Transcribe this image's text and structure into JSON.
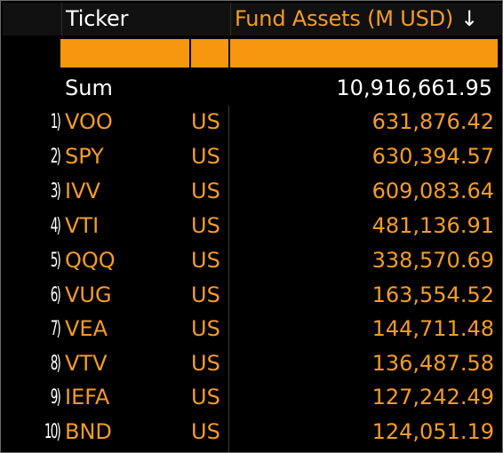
{
  "header": {
    "ticker_label": "Ticker",
    "fund_assets_label": "Fund Assets (M USD)",
    "sort_indicator": "↓",
    "sort_icon": "arrow-down-icon"
  },
  "sum": {
    "label": "Sum",
    "value": "10,916,661.95"
  },
  "rows": [
    {
      "num": "1)",
      "ticker": "VOO",
      "country": "US",
      "assets": "631,876.42"
    },
    {
      "num": "2)",
      "ticker": "SPY",
      "country": "US",
      "assets": "630,394.57"
    },
    {
      "num": "3)",
      "ticker": "IVV",
      "country": "US",
      "assets": "609,083.64"
    },
    {
      "num": "4)",
      "ticker": "VTI",
      "country": "US",
      "assets": "481,136.91"
    },
    {
      "num": "5)",
      "ticker": "QQQ",
      "country": "US",
      "assets": "338,570.69"
    },
    {
      "num": "6)",
      "ticker": "VUG",
      "country": "US",
      "assets": "163,554.52"
    },
    {
      "num": "7)",
      "ticker": "VEA",
      "country": "US",
      "assets": "144,711.48"
    },
    {
      "num": "8)",
      "ticker": "VTV",
      "country": "US",
      "assets": "136,487.58"
    },
    {
      "num": "9)",
      "ticker": "IEFA",
      "country": "US",
      "assets": "127,242.49"
    },
    {
      "num": "10)",
      "ticker": "BND",
      "country": "US",
      "assets": "124,051.19"
    }
  ],
  "colors": {
    "accent_orange": "#f39c2a",
    "filter_orange": "#f7970f",
    "background": "#000000",
    "text": "#ffffff"
  }
}
